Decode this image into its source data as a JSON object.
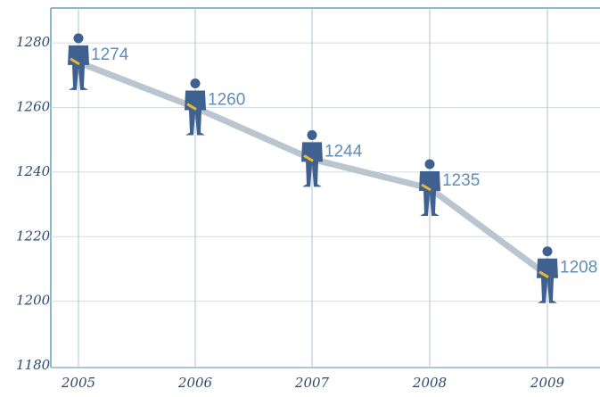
{
  "chart_data": {
    "type": "line",
    "categories": [
      "2005",
      "2006",
      "2007",
      "2008",
      "2009"
    ],
    "values": [
      1274,
      1260,
      1244,
      1235,
      1208
    ],
    "color": "#b9c6cf",
    "marker_color": "#3f6190",
    "label_color": "#5f8cb8",
    "ylim": [
      1180,
      1290
    ],
    "yticks": [
      1180,
      1200,
      1220,
      1240,
      1260,
      1280
    ],
    "grid": true
  }
}
